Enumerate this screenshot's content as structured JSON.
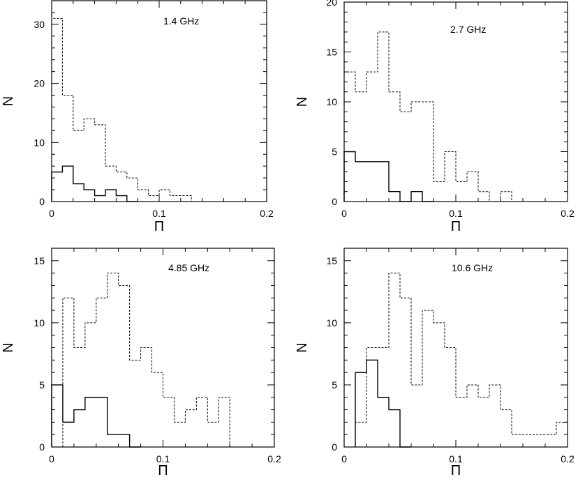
{
  "chart_data": [
    {
      "type": "histogram",
      "annotation": "1.4 GHz",
      "xlabel": "Π",
      "ylabel": "N",
      "xlim": [
        0,
        0.2
      ],
      "ylim": [
        0,
        34
      ],
      "xticks": [
        0,
        0.1,
        0.2
      ],
      "xtick_labels": [
        "0",
        "0.1",
        "0.2"
      ],
      "yticks": [
        0,
        10,
        20,
        30
      ],
      "ytick_labels": [
        "0",
        "10",
        "20",
        "30"
      ],
      "bin_width": 0.01,
      "series": [
        {
          "style": "dashed",
          "bin_starts": [
            0,
            0.01,
            0.02,
            0.03,
            0.04,
            0.05,
            0.06,
            0.07,
            0.08,
            0.09,
            0.1,
            0.11,
            0.12,
            0.13
          ],
          "counts": [
            31,
            18,
            12,
            14,
            13,
            6,
            5,
            4,
            2,
            1,
            2,
            1,
            1,
            0
          ]
        },
        {
          "style": "solid",
          "bin_starts": [
            0,
            0.01,
            0.02,
            0.03,
            0.04,
            0.05,
            0.06,
            0.07
          ],
          "counts": [
            5,
            6,
            3,
            2,
            1,
            2,
            1,
            0
          ]
        }
      ]
    },
    {
      "type": "histogram",
      "annotation": "2.7 GHz",
      "xlabel": "Π",
      "ylabel": "N",
      "xlim": [
        0,
        0.2
      ],
      "ylim": [
        0,
        20
      ],
      "xticks": [
        0,
        0.1,
        0.2
      ],
      "xtick_labels": [
        "0",
        "0.1",
        "0.2"
      ],
      "yticks": [
        0,
        5,
        10,
        15,
        20
      ],
      "ytick_labels": [
        "0",
        "5",
        "10",
        "15",
        "20"
      ],
      "bin_width": 0.01,
      "series": [
        {
          "style": "dashed",
          "bin_starts": [
            0,
            0.01,
            0.02,
            0.03,
            0.04,
            0.05,
            0.06,
            0.07,
            0.08,
            0.09,
            0.1,
            0.11,
            0.12,
            0.13,
            0.14,
            0.15
          ],
          "counts": [
            13,
            11,
            13,
            17,
            11,
            9,
            10,
            10,
            2,
            5,
            2,
            3,
            1,
            0,
            1,
            0
          ]
        },
        {
          "style": "solid",
          "bin_starts": [
            0,
            0.01,
            0.02,
            0.03,
            0.04,
            0.05,
            0.06,
            0.07
          ],
          "counts": [
            5,
            4,
            4,
            4,
            1,
            0,
            1,
            0
          ]
        }
      ]
    },
    {
      "type": "histogram",
      "annotation": "4.85 GHz",
      "xlabel": "Π",
      "ylabel": "N",
      "xlim": [
        0,
        0.2
      ],
      "ylim": [
        0,
        16
      ],
      "xticks": [
        0,
        0.1,
        0.2
      ],
      "xtick_labels": [
        "0",
        "0.1",
        "0.2"
      ],
      "yticks": [
        0,
        5,
        10,
        15
      ],
      "ytick_labels": [
        "0",
        "5",
        "10",
        "15"
      ],
      "bin_width": 0.01,
      "series": [
        {
          "style": "dashed",
          "bin_starts": [
            0.01,
            0.02,
            0.03,
            0.04,
            0.05,
            0.06,
            0.07,
            0.08,
            0.09,
            0.1,
            0.11,
            0.12,
            0.13,
            0.14,
            0.15
          ],
          "counts": [
            12,
            8,
            10,
            12,
            14,
            13,
            7,
            8,
            6,
            4,
            2,
            3,
            4,
            2,
            4
          ]
        },
        {
          "style": "solid",
          "bin_starts": [
            0,
            0.01,
            0.02,
            0.03,
            0.04,
            0.05,
            0.06,
            0.07
          ],
          "counts": [
            5,
            2,
            3,
            4,
            4,
            1,
            1,
            0
          ]
        }
      ]
    },
    {
      "type": "histogram",
      "annotation": "10.6 GHz",
      "xlabel": "Π",
      "ylabel": "N",
      "xlim": [
        0,
        0.2
      ],
      "ylim": [
        0,
        16
      ],
      "xticks": [
        0,
        0.1,
        0.2
      ],
      "xtick_labels": [
        "0",
        "0.1",
        "0.2"
      ],
      "yticks": [
        0,
        5,
        10,
        15
      ],
      "ytick_labels": [
        "0",
        "5",
        "10",
        "15"
      ],
      "bin_width": 0.01,
      "series": [
        {
          "style": "dashed",
          "bin_starts": [
            0.01,
            0.02,
            0.03,
            0.04,
            0.05,
            0.06,
            0.07,
            0.08,
            0.09,
            0.1,
            0.11,
            0.12,
            0.13,
            0.14,
            0.15,
            0.16,
            0.17,
            0.18,
            0.19
          ],
          "counts": [
            2,
            8,
            8,
            14,
            12,
            5,
            11,
            10,
            8,
            4,
            5,
            4,
            5,
            3,
            1,
            1,
            1,
            1,
            2
          ]
        },
        {
          "style": "solid",
          "bin_starts": [
            0.01,
            0.02,
            0.03,
            0.04,
            0.05
          ],
          "counts": [
            6,
            7,
            4,
            3,
            0
          ]
        }
      ]
    }
  ]
}
